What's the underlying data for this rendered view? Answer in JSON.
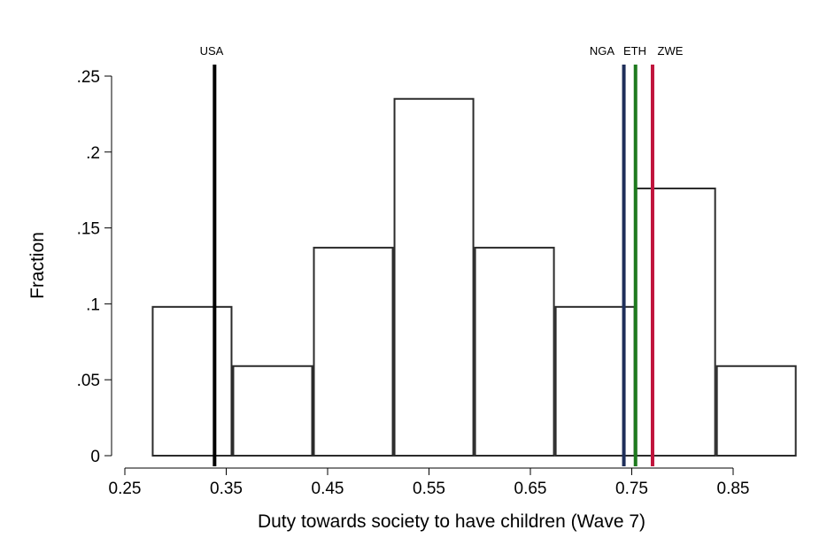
{
  "chart_data": {
    "type": "bar",
    "subtype": "histogram",
    "xlabel": "Duty towards society to have children (Wave 7)",
    "ylabel": "Fraction",
    "xlim": [
      0.25,
      0.85
    ],
    "ylim": [
      0,
      0.25
    ],
    "xticks": [
      0.25,
      0.35,
      0.45,
      0.55,
      0.65,
      0.75,
      0.85
    ],
    "xtick_labels": [
      "0.25",
      "0.35",
      "0.45",
      "0.55",
      "0.65",
      "0.75",
      "0.85"
    ],
    "yticks": [
      0,
      0.05,
      0.1,
      0.15,
      0.2,
      0.25
    ],
    "ytick_labels": [
      "0",
      ".05",
      ".1",
      ".15",
      ".2",
      ".25"
    ],
    "bins": [
      {
        "start": 0.2766,
        "end": 0.3561,
        "value": 0.098
      },
      {
        "start": 0.3561,
        "end": 0.4356,
        "value": 0.059
      },
      {
        "start": 0.4356,
        "end": 0.5151,
        "value": 0.137
      },
      {
        "start": 0.5151,
        "end": 0.5946,
        "value": 0.235
      },
      {
        "start": 0.5946,
        "end": 0.6741,
        "value": 0.137
      },
      {
        "start": 0.6741,
        "end": 0.7536,
        "value": 0.098
      },
      {
        "start": 0.7536,
        "end": 0.8331,
        "value": 0.176
      },
      {
        "start": 0.8331,
        "end": 0.9126,
        "value": 0.059
      }
    ],
    "reference_lines": [
      {
        "label": "USA",
        "x": 0.3385,
        "color": "#000000"
      },
      {
        "label": "NGA",
        "x": 0.7422,
        "color": "#1f2f5a"
      },
      {
        "label": "ETH",
        "x": 0.7537,
        "color": "#1e7a1e"
      },
      {
        "label": "ZWE",
        "x": 0.7705,
        "color": "#c0143c"
      }
    ],
    "grid": false,
    "legend": "none"
  }
}
